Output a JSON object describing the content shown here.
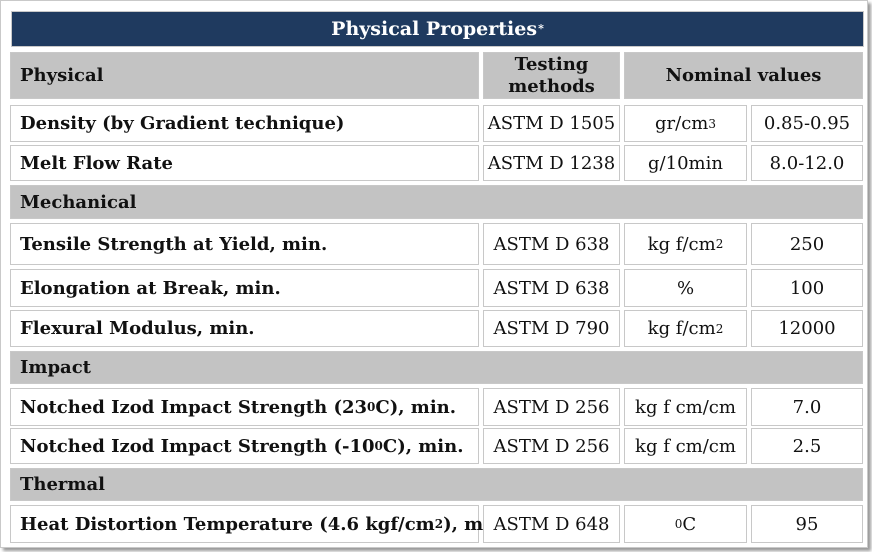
{
  "title": "Physical Properties",
  "title_mark": "*",
  "header": {
    "col1": "Physical",
    "col2_line1": "Testing",
    "col2_line2": "methods",
    "col3": "Nominal values"
  },
  "rows": [
    {
      "property": "Density  (by Gradient technique)",
      "method": "ASTM D 1505",
      "unit": "gr/cm",
      "unit_sup": "3",
      "value": "0.85-0.95"
    },
    {
      "property": "Melt Flow Rate",
      "method": "ASTM D 1238",
      "unit": "g/10min",
      "value": "8.0-12.0"
    },
    {
      "section": "Mechanical"
    },
    {
      "property": "Tensile Strength at Yield, min.",
      "method": "ASTM D 638",
      "unit": "kg f/cm",
      "unit_sup": "2",
      "value": "250"
    },
    {
      "property": "Elongation at Break, min.",
      "method": "ASTM D 638",
      "unit": "%",
      "value": "100"
    },
    {
      "property": "Flexural Modulus, min.",
      "method": "ASTM D 790",
      "unit": "kg f/cm",
      "unit_sup": "2",
      "value": "12000"
    },
    {
      "section": "Impact"
    },
    {
      "property_a": "Notched Izod Impact Strength (23 ",
      "property_sup": "0",
      "property_b": "C), min.",
      "method": "ASTM D 256",
      "unit": "kg f cm/cm",
      "value": "7.0"
    },
    {
      "property_a": "Notched Izod Impact Strength (-10 ",
      "property_sup": "0",
      "property_b": "C), min.",
      "method": "ASTM D 256",
      "unit": "kg f cm/cm",
      "value": "2.5"
    },
    {
      "section": "Thermal"
    },
    {
      "property_a": "Heat Distortion Temperature (4.6 kgf/cm",
      "property_sup": "2",
      "property_b": "), min.",
      "method": "ASTM D 648",
      "unit_pre_sup": "0",
      "unit": "C",
      "value": "95"
    }
  ]
}
